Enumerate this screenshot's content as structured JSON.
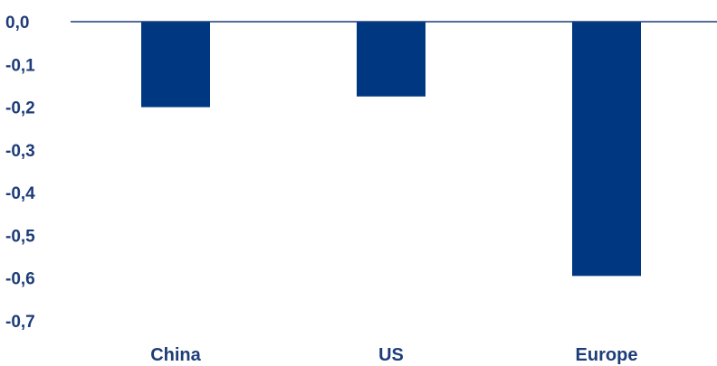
{
  "chart_data": {
    "type": "bar",
    "categories": [
      "China",
      "US",
      "Europe"
    ],
    "values": [
      -0.2,
      -0.175,
      -0.595
    ],
    "ylim": [
      -0.7,
      0.0
    ],
    "yticks": [
      0.0,
      -0.1,
      -0.2,
      -0.3,
      -0.4,
      -0.5,
      -0.6,
      -0.7
    ],
    "ytick_labels": [
      "0,0",
      "-0,1",
      "-0,2",
      "-0,3",
      "-0,4",
      "-0,5",
      "-0,6",
      "-0,7"
    ],
    "title": "",
    "xlabel": "",
    "ylabel": "",
    "grid": false,
    "bar_color": "#003781",
    "axis_color": "#1d3c78",
    "label_color": "#1d3c78"
  }
}
